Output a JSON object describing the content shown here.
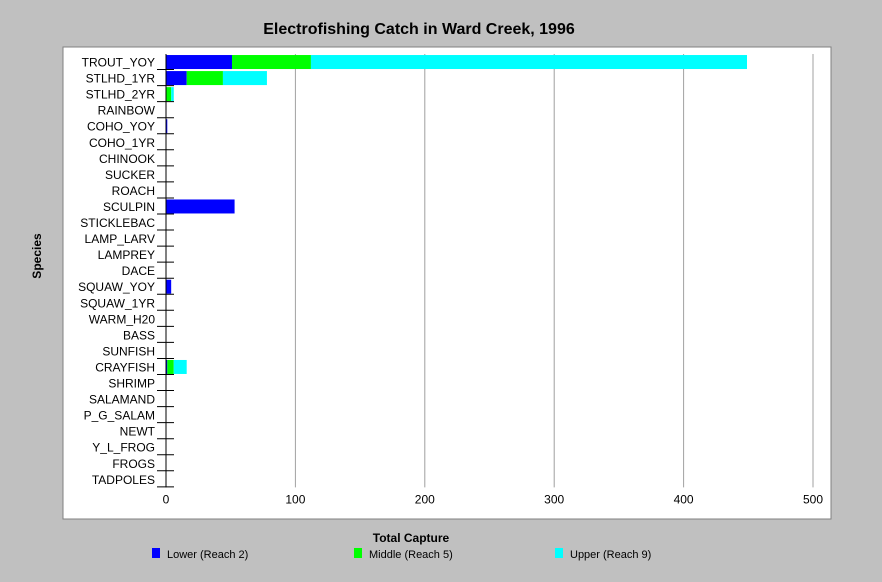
{
  "chart_data": {
    "type": "bar",
    "orientation": "horizontal",
    "stacked": true,
    "title": "Electrofishing Catch in Ward Creek, 1996",
    "xlabel": "Total Capture",
    "ylabel": "Species",
    "xlim": [
      0,
      500
    ],
    "xticks": [
      0,
      100,
      200,
      300,
      400,
      500
    ],
    "grid": "vertical",
    "legend_position": "bottom",
    "categories": [
      "TROUT_YOY",
      "STLHD_1YR",
      "STLHD_2YR",
      "RAINBOW",
      "COHO_YOY",
      "COHO_1YR",
      "CHINOOK",
      "SUCKER",
      "ROACH",
      "SCULPIN",
      "STICKLEBAC",
      "LAMP_LARV",
      "LAMPREY",
      "DACE",
      "SQUAW_YOY",
      "SQUAW_1YR",
      "WARM_H20",
      "BASS",
      "SUNFISH",
      "CRAYFISH",
      "SHRIMP",
      "SALAMAND",
      "P_G_SALAM",
      "NEWT",
      "Y_L_FROG",
      "FROGS",
      "TADPOLES"
    ],
    "series": [
      {
        "name": "Lower  (Reach 2)",
        "color": "#0000ff",
        "values": [
          51,
          16,
          0,
          0,
          1,
          0,
          0,
          0,
          0,
          53,
          0,
          0,
          0,
          0,
          4,
          0,
          0,
          0,
          0,
          1,
          0,
          0,
          0,
          0,
          0,
          0,
          0
        ]
      },
      {
        "name": "Middle (Reach 5)",
        "color": "#00ff00",
        "values": [
          61,
          28,
          4,
          0,
          0,
          0,
          0,
          0,
          0,
          0,
          0,
          0,
          0,
          0,
          0,
          0,
          0,
          0,
          0,
          5,
          0,
          0,
          0,
          0,
          0,
          0,
          0
        ]
      },
      {
        "name": "Upper (Reach 9)",
        "color": "#00ffff",
        "values": [
          337,
          34,
          2,
          0,
          0,
          0,
          0,
          0,
          0,
          0,
          0,
          0,
          0,
          0,
          0,
          0,
          0,
          0,
          0,
          10,
          0,
          0,
          0,
          0,
          0,
          0,
          0
        ]
      }
    ]
  }
}
